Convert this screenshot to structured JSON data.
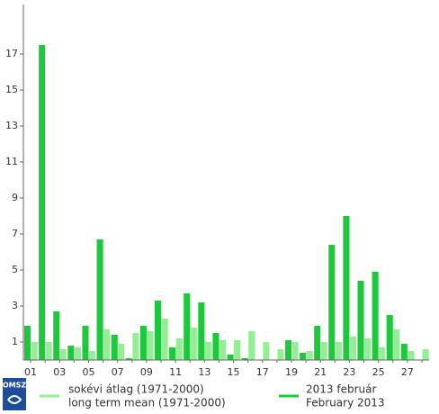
{
  "logo": "OMSZ",
  "chart_data": {
    "type": "bar",
    "categories": [
      "01",
      null,
      "03",
      null,
      "05",
      null,
      "07",
      null,
      "09",
      null,
      "11",
      null,
      "13",
      null,
      "15",
      null,
      "17",
      null,
      "19",
      null,
      "21",
      null,
      "23",
      null,
      "25",
      null,
      "27",
      null
    ],
    "series": [
      {
        "name": [
          "2013 február",
          "February 2013"
        ],
        "color": "#1ec83c",
        "values": [
          1.9,
          17.5,
          2.7,
          0.8,
          1.9,
          6.7,
          1.4,
          0.1,
          1.9,
          3.3,
          0.7,
          3.7,
          3.2,
          1.5,
          0.3,
          0.1,
          0,
          0,
          1.1,
          0.4,
          1.9,
          6.4,
          8.0,
          4.4,
          4.9,
          2.5,
          0.9,
          0
        ]
      },
      {
        "name": [
          "sokévi átlag (1971-2000)",
          "long term mean (1971-2000)"
        ],
        "color": "#94ef94",
        "values": [
          1.0,
          1.0,
          0.6,
          0.7,
          0.5,
          1.7,
          0.9,
          1.5,
          1.6,
          2.3,
          1.2,
          1.8,
          1.0,
          1.1,
          1.1,
          1.6,
          1.0,
          0.6,
          1.0,
          0.5,
          1.0,
          1.0,
          1.3,
          1.2,
          0.7,
          1.7,
          0.5,
          0.6
        ]
      }
    ],
    "ylim": [
      0,
      19.75
    ],
    "yticks": [
      1,
      3,
      5,
      7,
      9,
      11,
      13,
      15,
      17
    ]
  }
}
